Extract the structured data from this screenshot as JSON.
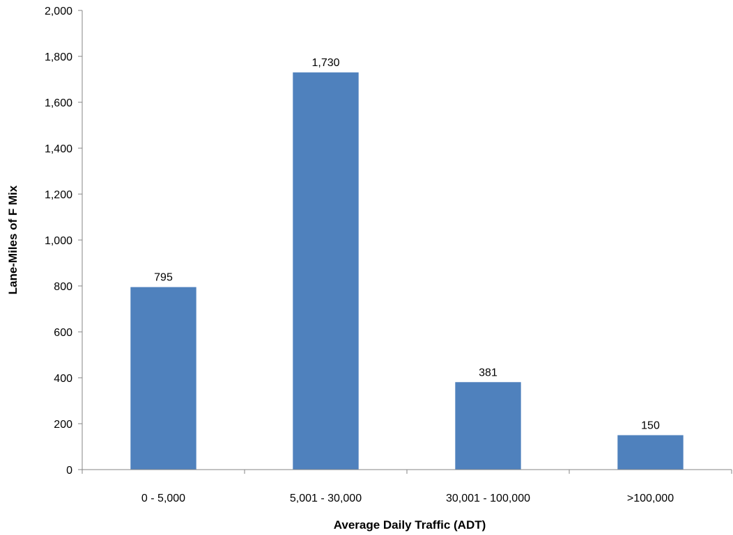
{
  "chart_data": {
    "type": "bar",
    "title": "",
    "xlabel": "Average Daily Traffic (ADT)",
    "ylabel": "Lane-Miles of F Mix",
    "categories": [
      "0 - 5,000",
      "5,001 - 30,000",
      "30,001 - 100,000",
      ">100,000"
    ],
    "values": [
      795,
      1730,
      381,
      150
    ],
    "data_labels": [
      "795",
      "1,730",
      "381",
      "150"
    ],
    "ylim": [
      0,
      2000
    ],
    "yticks": [
      0,
      200,
      400,
      600,
      800,
      1000,
      1200,
      1400,
      1600,
      1800,
      2000
    ],
    "ytick_labels": [
      "0",
      "200",
      "400",
      "600",
      "800",
      "1,000",
      "1,200",
      "1,400",
      "1,600",
      "1,800",
      "2,000"
    ],
    "grid": false,
    "legend": "none",
    "bar_color": "#4F81BD",
    "axis_color": "#868686"
  }
}
